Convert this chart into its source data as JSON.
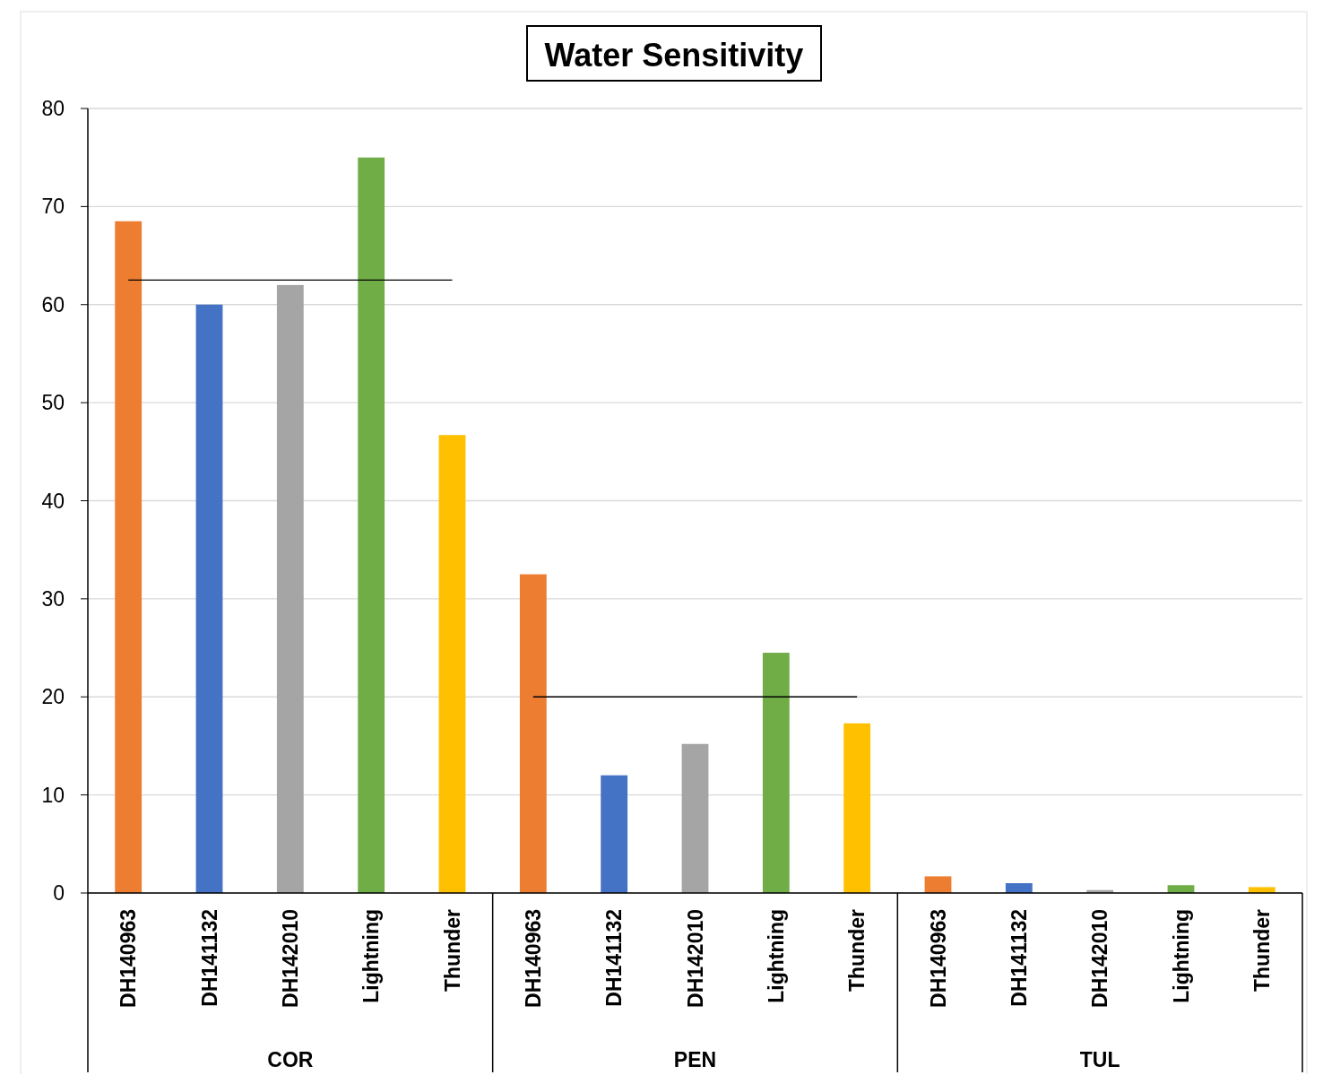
{
  "chart_data": {
    "type": "bar",
    "title": "Water Sensitivity",
    "categories": [
      "DH140963",
      "DH141132",
      "DH142010",
      "Lightning",
      "Thunder",
      "DH140963",
      "DH141132",
      "DH142010",
      "Lightning",
      "Thunder",
      "DH140963",
      "DH141132",
      "DH142010",
      "Lightning",
      "Thunder"
    ],
    "series": [
      {
        "values": [
          68.5,
          60,
          62,
          75,
          46.7,
          32.5,
          12,
          15.2,
          24.5,
          17.3,
          1.7,
          1,
          0.3,
          0.8,
          0.6
        ],
        "colors": [
          "#ed7d31",
          "#4472c4",
          "#a5a5a5",
          "#70ad47",
          "#ffc000",
          "#ed7d31",
          "#4472c4",
          "#a5a5a5",
          "#70ad47",
          "#ffc000",
          "#ed7d31",
          "#4472c4",
          "#a5a5a5",
          "#70ad47",
          "#ffc000"
        ]
      },
      {
        "type": "line",
        "color": "#000000",
        "values": [
          62.5,
          62.5,
          62.5,
          62.5,
          62.5,
          null,
          null,
          null,
          null,
          null,
          null,
          null,
          null,
          null,
          null
        ]
      },
      {
        "type": "line",
        "color": "#000000",
        "values": [
          null,
          null,
          null,
          null,
          null,
          20,
          20,
          20,
          20,
          20,
          null,
          null,
          null,
          null,
          null
        ]
      }
    ],
    "annotations": [
      "COR",
      "PEN",
      "TUL"
    ],
    "ylim": [
      0,
      80
    ],
    "yticks": [
      0,
      10,
      20,
      30,
      40,
      50,
      60,
      70,
      80
    ],
    "grid": "y"
  }
}
